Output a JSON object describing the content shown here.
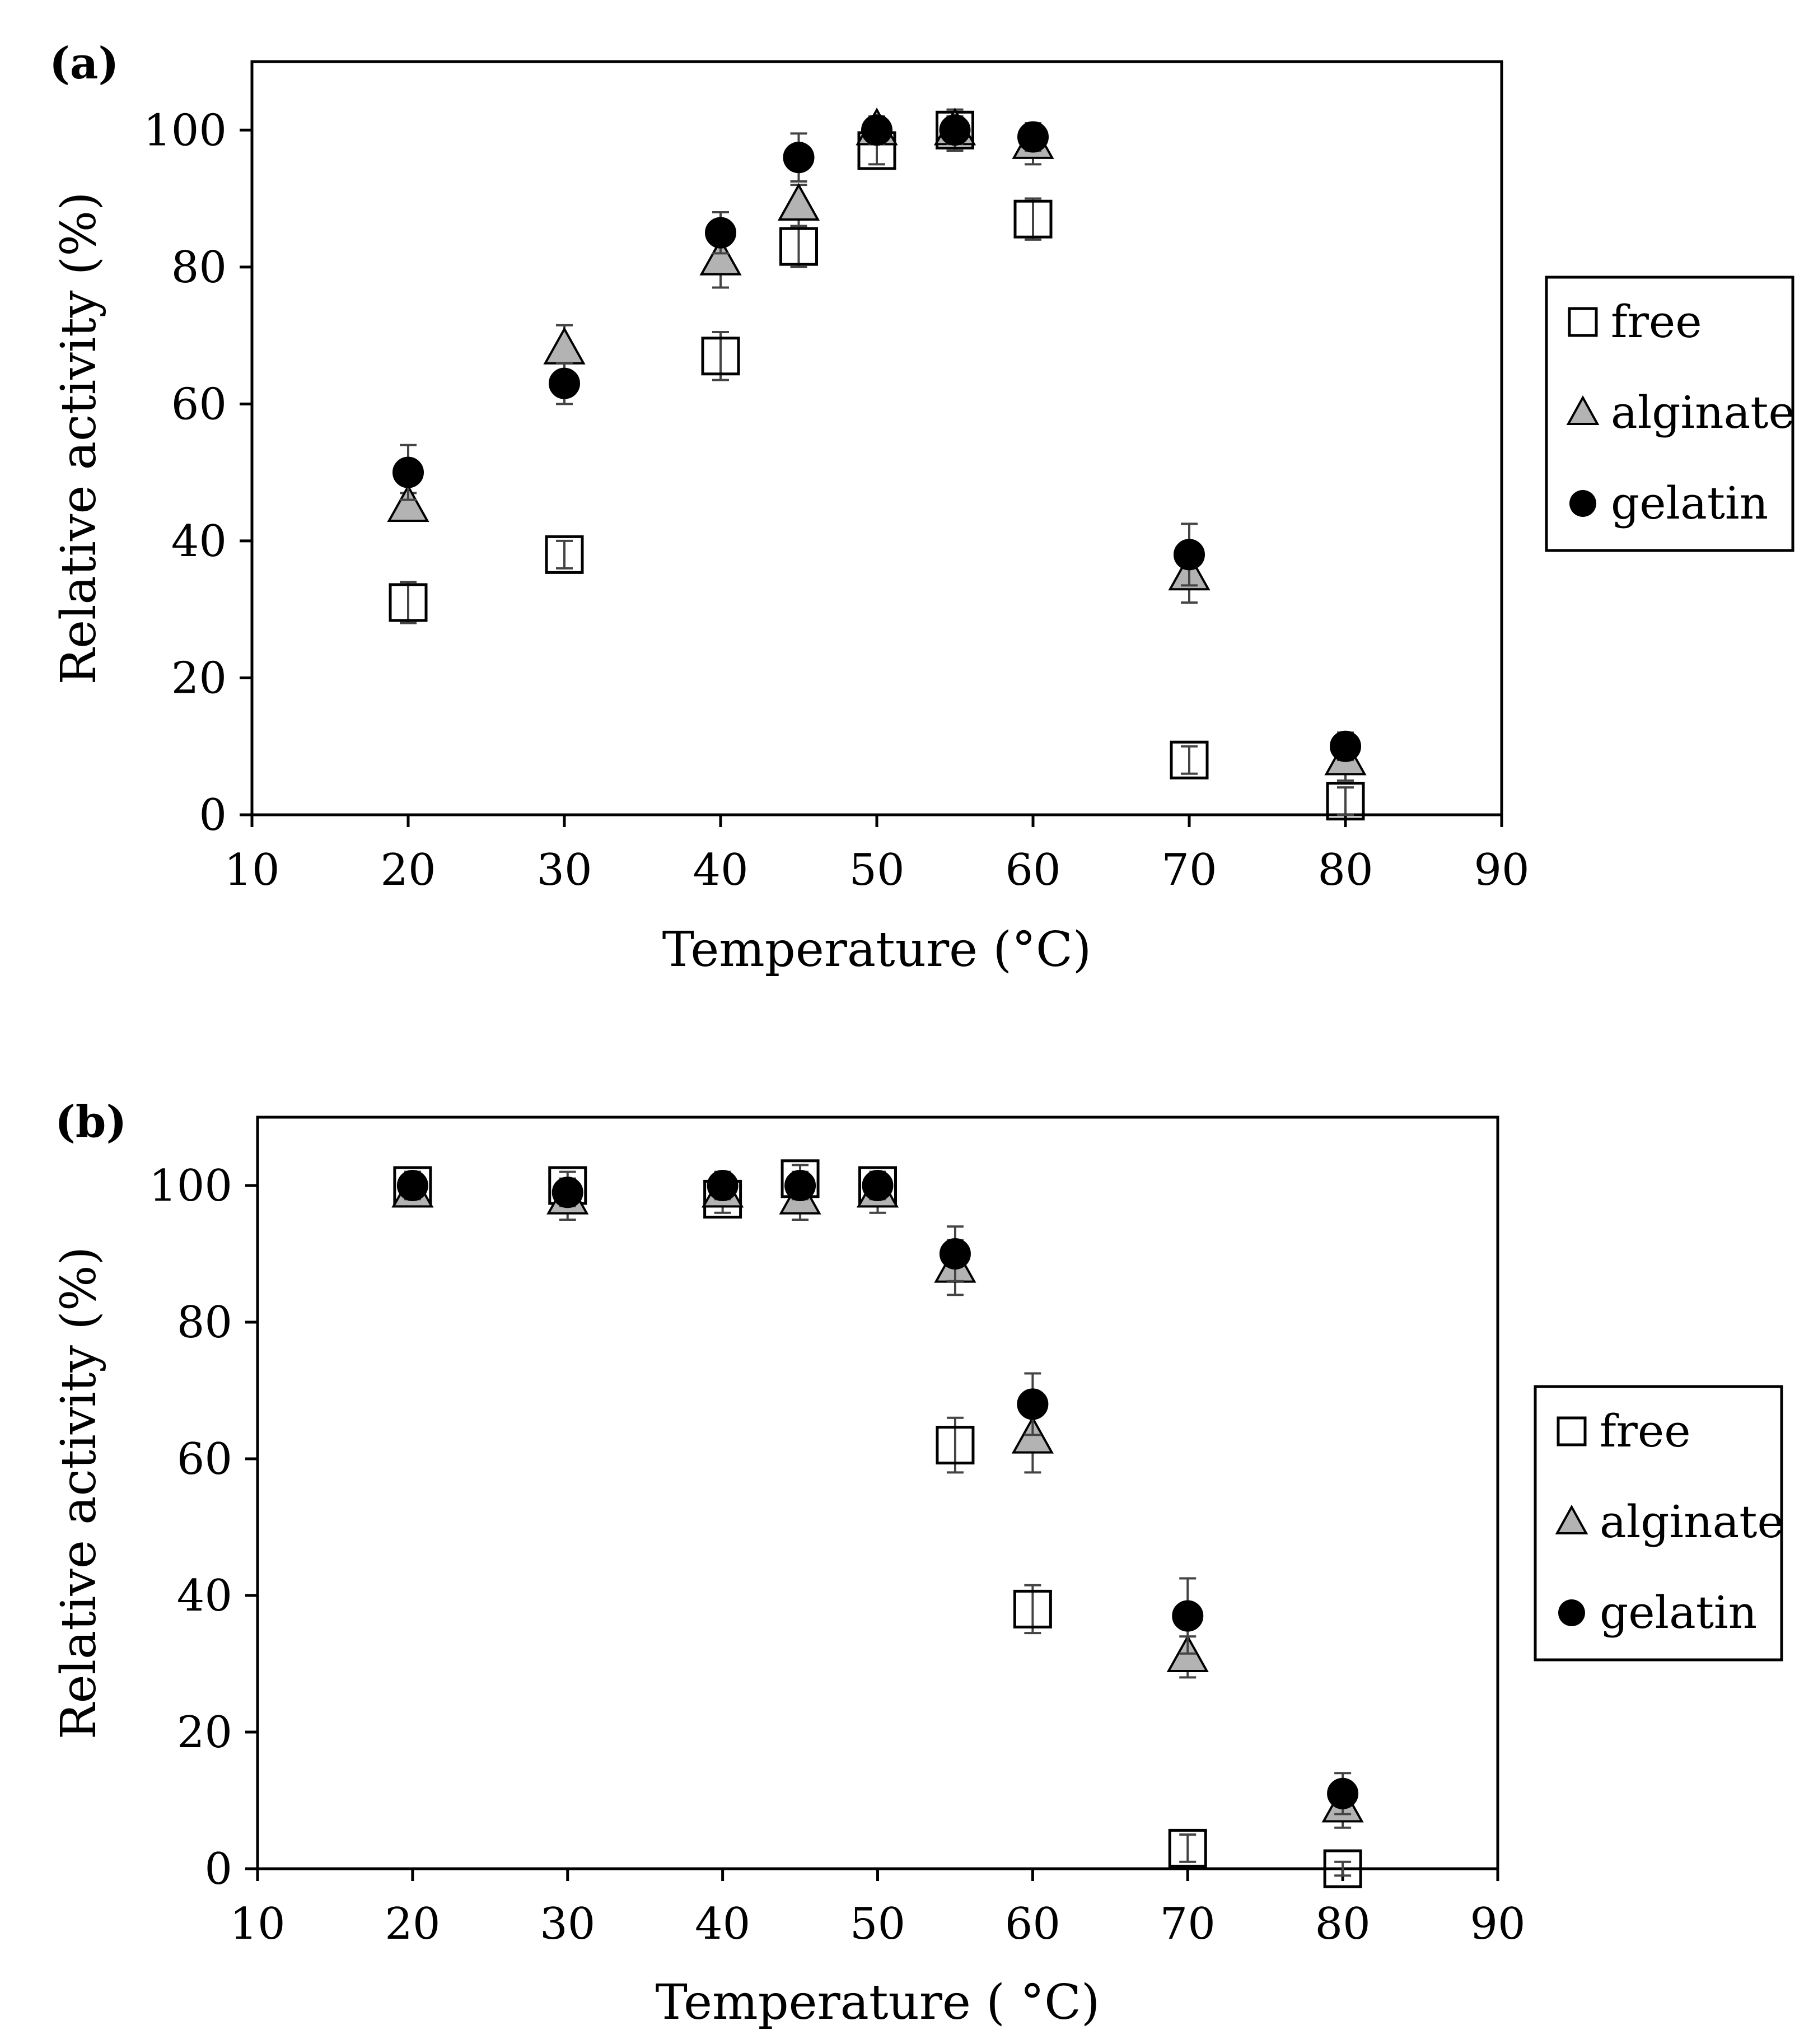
{
  "chart_data": [
    {
      "type": "scatter",
      "panel_label": "(a)",
      "xlabel": "Temperature  (°C)",
      "ylabel": "Relative activity (%)",
      "xlim": [
        10,
        90
      ],
      "ylim": [
        0,
        110
      ],
      "xticks": [
        10,
        20,
        30,
        40,
        50,
        60,
        70,
        80,
        90
      ],
      "yticks": [
        0,
        20,
        40,
        60,
        80,
        100
      ],
      "legend_position": "right",
      "series": [
        {
          "name": "free",
          "marker": "square",
          "color": "#ffffff",
          "x": [
            20,
            30,
            40,
            45,
            50,
            55,
            60,
            70,
            80
          ],
          "y": [
            31,
            38,
            67,
            83,
            97,
            100,
            87,
            8,
            2
          ],
          "err": [
            3,
            2,
            3.5,
            3,
            2,
            3,
            3,
            2,
            2
          ]
        },
        {
          "name": "alginate",
          "marker": "triangle",
          "color": "#b3b3b3",
          "x": [
            20,
            30,
            40,
            45,
            50,
            55,
            60,
            70,
            80
          ],
          "y": [
            45,
            68,
            81,
            89,
            100,
            100,
            98,
            35,
            8
          ],
          "err": [
            2,
            3.5,
            4,
            3,
            2,
            2,
            3,
            4,
            3
          ]
        },
        {
          "name": "gelatin",
          "marker": "circle",
          "color": "#000000",
          "x": [
            20,
            30,
            40,
            45,
            50,
            55,
            60,
            70,
            80
          ],
          "y": [
            50,
            63,
            85,
            96,
            100,
            100,
            99,
            38,
            10
          ],
          "err": [
            4,
            3,
            3,
            3.5,
            2,
            2,
            2,
            4.5,
            2
          ]
        }
      ]
    },
    {
      "type": "scatter",
      "panel_label": "(b)",
      "xlabel": "Temperature ( °C)",
      "ylabel": "Relative activity (%)",
      "xlim": [
        10,
        90
      ],
      "ylim": [
        0,
        110
      ],
      "xticks": [
        10,
        20,
        30,
        40,
        50,
        60,
        70,
        80,
        90
      ],
      "yticks": [
        0,
        20,
        40,
        60,
        80,
        100
      ],
      "legend_position": "right",
      "series": [
        {
          "name": "free",
          "marker": "square",
          "color": "#ffffff",
          "x": [
            20,
            30,
            40,
            45,
            50,
            55,
            60,
            70,
            80
          ],
          "y": [
            100,
            100,
            98,
            101,
            100,
            62,
            38,
            3,
            0
          ],
          "err": [
            2,
            2,
            2,
            2,
            2,
            4,
            3.5,
            2,
            1
          ]
        },
        {
          "name": "alginate",
          "marker": "triangle",
          "color": "#b3b3b3",
          "x": [
            20,
            30,
            40,
            45,
            50,
            55,
            60,
            70,
            80
          ],
          "y": [
            99,
            98,
            99,
            98,
            99,
            88,
            63,
            31,
            9
          ],
          "err": [
            2,
            3,
            2,
            3,
            3,
            4,
            5,
            3,
            3
          ]
        },
        {
          "name": "gelatin",
          "marker": "circle",
          "color": "#000000",
          "x": [
            20,
            30,
            40,
            45,
            50,
            55,
            60,
            70,
            80
          ],
          "y": [
            100,
            99,
            100,
            100,
            100,
            90,
            68,
            37,
            11
          ],
          "err": [
            2,
            2,
            2,
            2,
            2,
            4,
            4.5,
            5.5,
            3
          ]
        }
      ]
    }
  ]
}
